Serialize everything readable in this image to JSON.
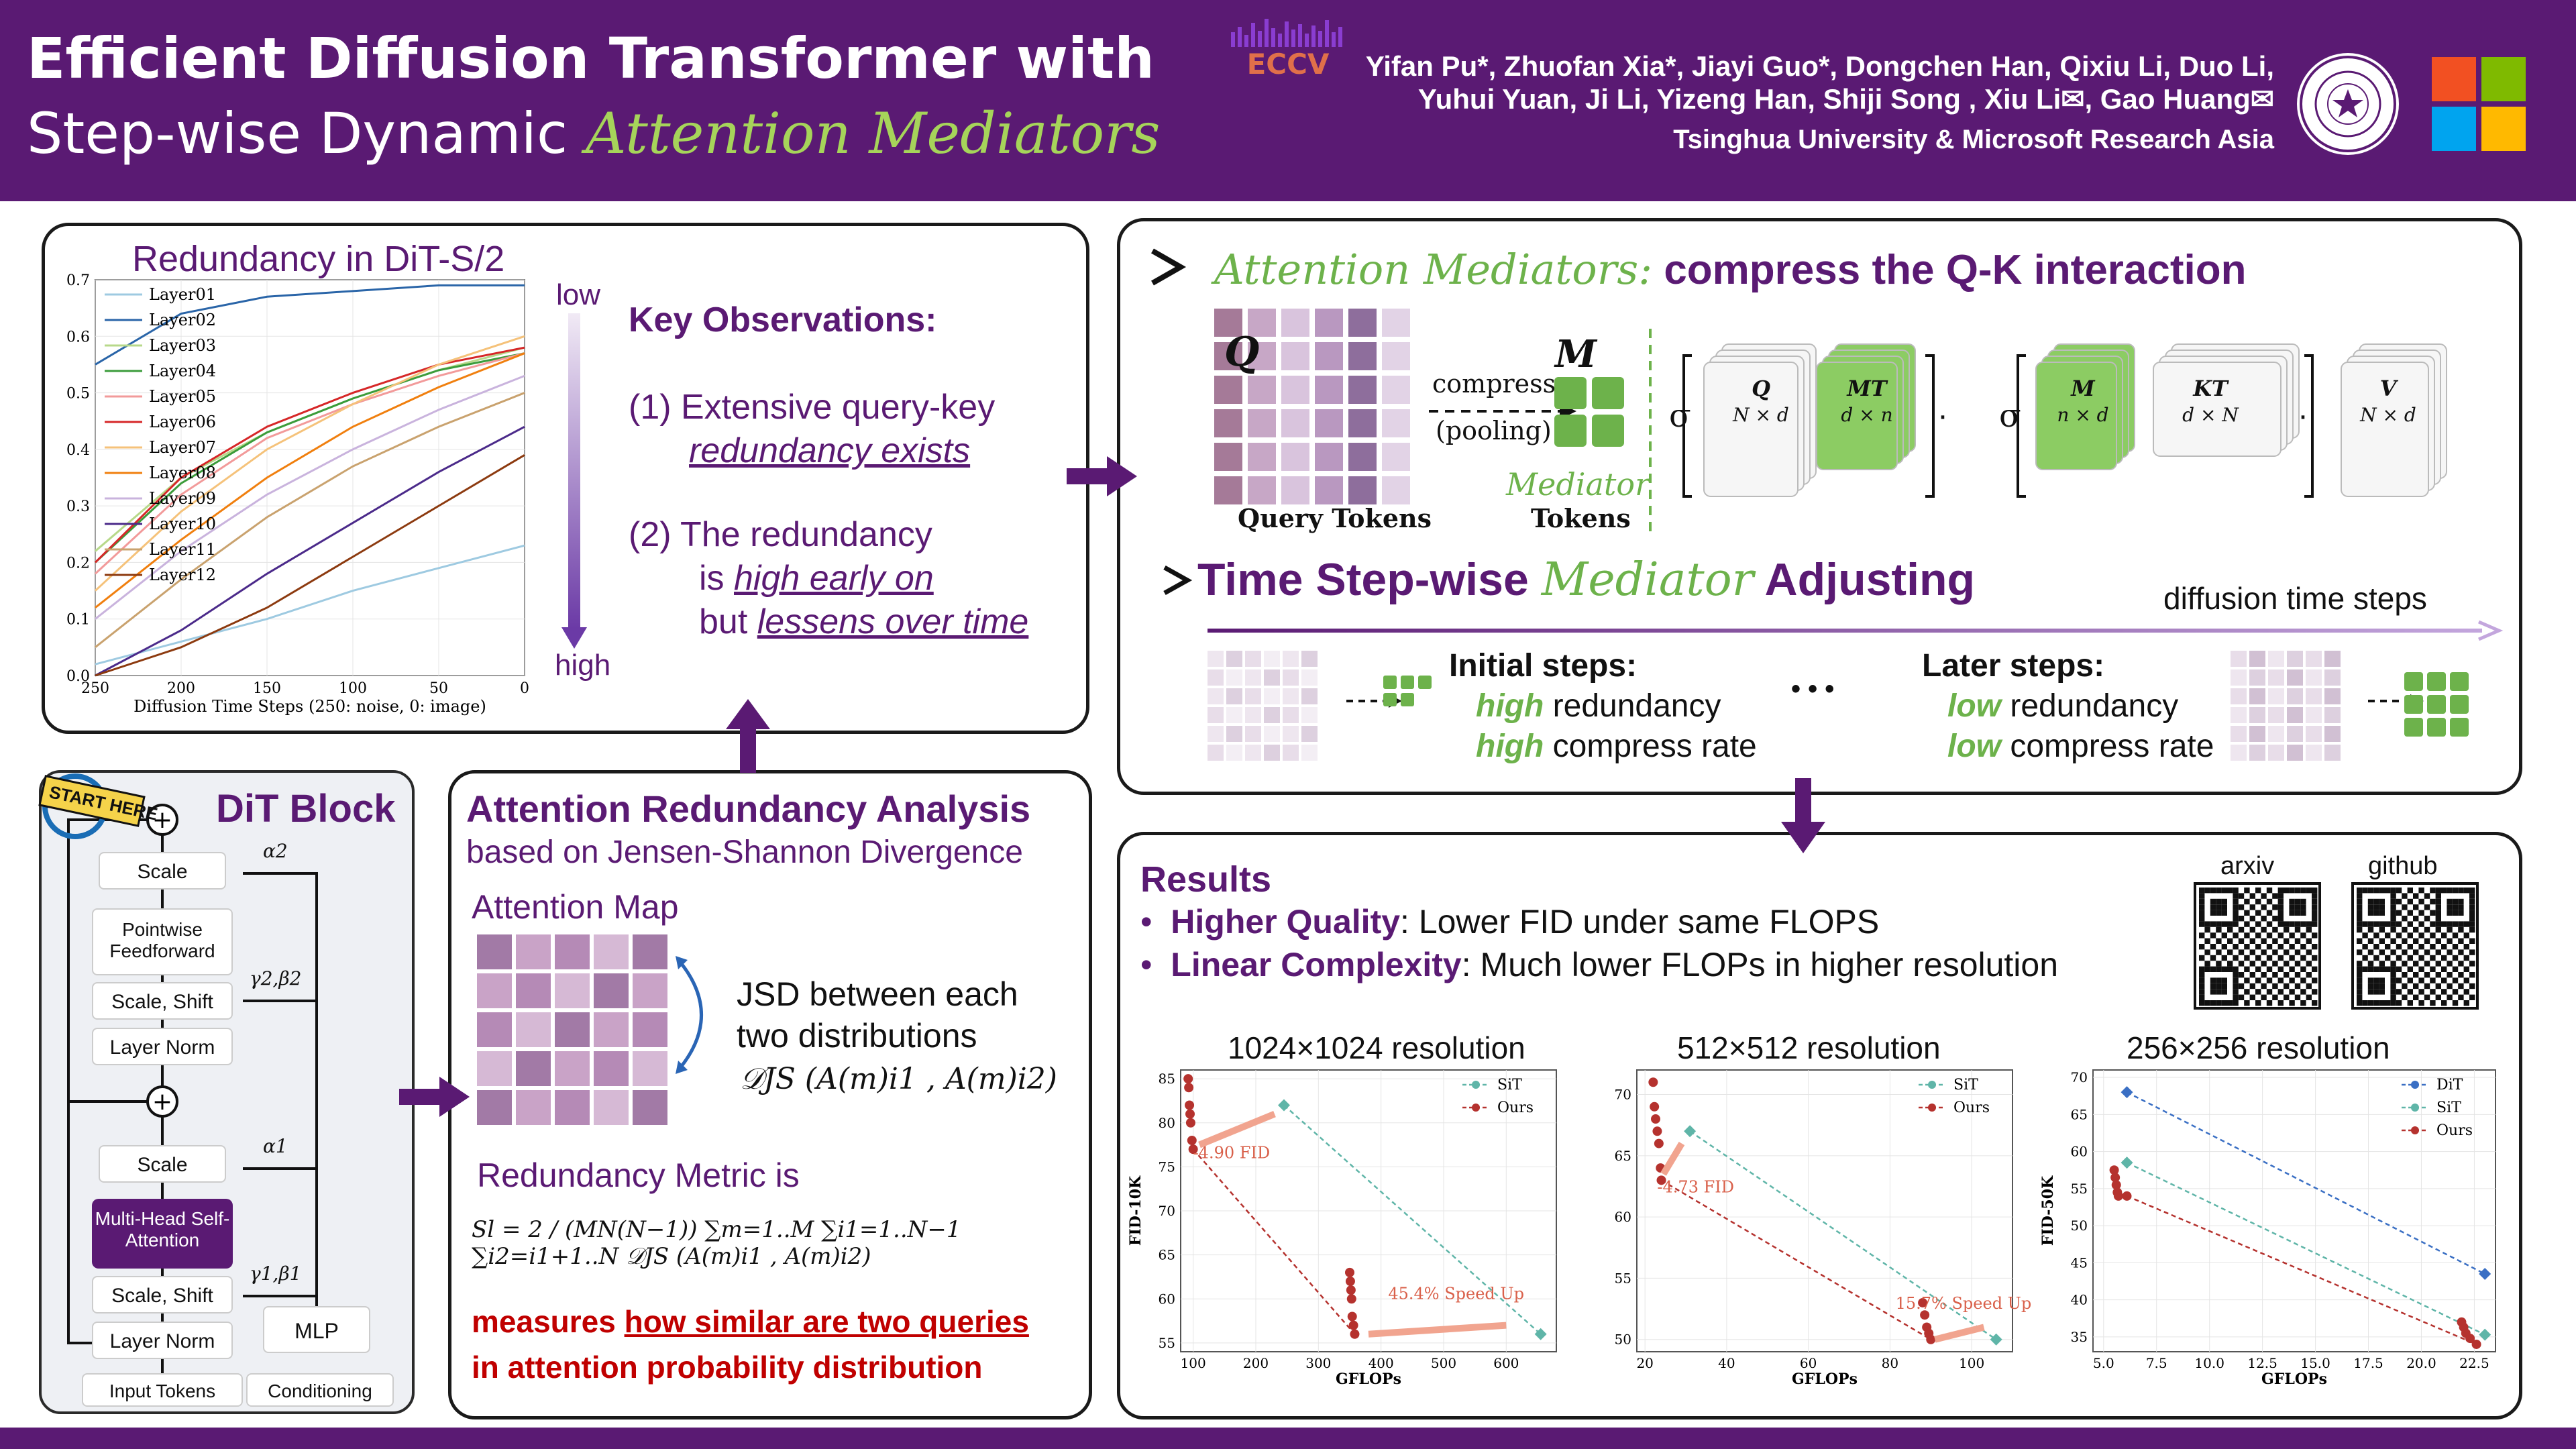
{
  "header": {
    "title_line1_bold": "Efficient Diffusion Transformer",
    "title_line1_rest": " with",
    "title_line2_plain": "Step-wise Dynamic ",
    "title_line2_accent": "Attention Mediators",
    "eccv_label": "ECCV",
    "authors_line1": "Yifan Pu*, Zhuofan Xia*, Jiayi Guo*, Dongchen Han, Qixiu Li, Duo Li,",
    "authors_line2": "Yuhui Yuan, Ji Li, Yizeng Han, Shiji Song , Xiu Li✉, Gao Huang✉",
    "affiliation": "Tsinghua University & Microsoft Research Asia"
  },
  "colors": {
    "brand_purple": "#5a1a73",
    "mediator_green": "#6db24b",
    "attention_pink": "#c9a3c7",
    "highlight_red": "#c00000"
  },
  "redundancy_panel": {
    "chart_title": "Redundancy in DiT-S/2",
    "low_label": "low",
    "high_label": "high",
    "observations_title": "Key Observations:",
    "obs1_a": "(1) Extensive query-key",
    "obs1_b": "redundancy exists",
    "obs2_a": "(2) The redundancy",
    "obs2_b_prefix": "is ",
    "obs2_b": "high early on",
    "obs2_c_prefix": "but ",
    "obs2_c": "lessens over time"
  },
  "chart_data": [
    {
      "type": "line",
      "title": "Redundancy in DiT-S/2",
      "xlabel": "Diffusion Time Steps (250: noise, 0: image)",
      "ylabel": "",
      "x_ticks": [
        "250",
        "200",
        "150",
        "100",
        "50",
        "0"
      ],
      "y_ticks": [
        "0.0",
        "0.1",
        "0.2",
        "0.3",
        "0.4",
        "0.5",
        "0.6",
        "0.7"
      ],
      "xlim": [
        250,
        0
      ],
      "ylim": [
        0,
        0.7
      ],
      "x": [
        250,
        200,
        150,
        100,
        50,
        0
      ],
      "series": [
        {
          "name": "Layer01",
          "values": [
            0.02,
            0.06,
            0.1,
            0.15,
            0.19,
            0.23
          ]
        },
        {
          "name": "Layer02",
          "values": [
            0.55,
            0.64,
            0.67,
            0.68,
            0.69,
            0.69
          ]
        },
        {
          "name": "Layer03",
          "values": [
            0.22,
            0.35,
            0.43,
            0.49,
            0.54,
            0.58
          ]
        },
        {
          "name": "Layer04",
          "values": [
            0.2,
            0.34,
            0.43,
            0.49,
            0.54,
            0.57
          ]
        },
        {
          "name": "Layer05",
          "values": [
            0.18,
            0.32,
            0.42,
            0.48,
            0.53,
            0.57
          ]
        },
        {
          "name": "Layer06",
          "values": [
            0.2,
            0.35,
            0.44,
            0.5,
            0.55,
            0.58
          ]
        },
        {
          "name": "Layer07",
          "values": [
            0.15,
            0.29,
            0.4,
            0.48,
            0.55,
            0.6
          ]
        },
        {
          "name": "Layer08",
          "values": [
            0.12,
            0.24,
            0.35,
            0.44,
            0.51,
            0.57
          ]
        },
        {
          "name": "Layer09",
          "values": [
            0.1,
            0.22,
            0.32,
            0.4,
            0.47,
            0.53
          ]
        },
        {
          "name": "Layer10",
          "values": [
            0.0,
            0.08,
            0.18,
            0.27,
            0.36,
            0.44
          ]
        },
        {
          "name": "Layer11",
          "values": [
            0.05,
            0.17,
            0.28,
            0.37,
            0.44,
            0.5
          ]
        },
        {
          "name": "Layer12",
          "values": [
            0.0,
            0.05,
            0.12,
            0.21,
            0.3,
            0.39
          ]
        }
      ],
      "series_colors": [
        "#9ecae1",
        "#2a65a8",
        "#b7d98a",
        "#3b9c3b",
        "#f29a9a",
        "#d62728",
        "#f5c27a",
        "#f07f0e",
        "#c9b3dd",
        "#4b2a8a",
        "#c9a26e",
        "#8c3a0f"
      ]
    },
    {
      "type": "scatter",
      "title": "1024×1024 resolution",
      "xlabel": "GFLOPs",
      "ylabel": "FID-10K",
      "x_ticks": [
        "100",
        "200",
        "300",
        "400",
        "500",
        "600"
      ],
      "y_ticks": [
        "55",
        "60",
        "65",
        "70",
        "75",
        "80",
        "85"
      ],
      "xlim": [
        80,
        680
      ],
      "ylim": [
        54,
        86
      ],
      "series": [
        {
          "name": "SiT",
          "points": [
            [
              245,
              82
            ],
            [
              655,
              56
            ]
          ]
        },
        {
          "name": "Ours",
          "points": [
            [
              92,
              85
            ],
            [
              93,
              84
            ],
            [
              94,
              82
            ],
            [
              95,
              81
            ],
            [
              96,
              80
            ],
            [
              98,
              78
            ],
            [
              100,
              77
            ],
            [
              350,
              63
            ],
            [
              351,
              62
            ],
            [
              352,
              61
            ],
            [
              353,
              60
            ],
            [
              354,
              58
            ],
            [
              356,
              57
            ],
            [
              358,
              56
            ]
          ]
        }
      ],
      "annotations": [
        "-4.90 FID",
        "45.4% Speed Up"
      ]
    },
    {
      "type": "scatter",
      "title": "512×512 resolution",
      "xlabel": "GFLOPs",
      "ylabel": "",
      "x_ticks": [
        "20",
        "40",
        "60",
        "80",
        "100"
      ],
      "y_ticks": [
        "50",
        "55",
        "60",
        "65",
        "70"
      ],
      "xlim": [
        18,
        110
      ],
      "ylim": [
        49,
        72
      ],
      "series": [
        {
          "name": "SiT",
          "points": [
            [
              31,
              67
            ],
            [
              106,
              50
            ]
          ]
        },
        {
          "name": "Ours",
          "points": [
            [
              22,
              71
            ],
            [
              22.3,
              69
            ],
            [
              22.6,
              68
            ],
            [
              23,
              67
            ],
            [
              23.4,
              66
            ],
            [
              23.8,
              64
            ],
            [
              24,
              63
            ],
            [
              88,
              53
            ],
            [
              88.5,
              52
            ],
            [
              89,
              51
            ],
            [
              89.5,
              50.5
            ],
            [
              90,
              50
            ]
          ]
        }
      ],
      "annotations": [
        "-4.73 FID",
        "15.7% Speed Up"
      ]
    },
    {
      "type": "scatter",
      "title": "256×256 resolution",
      "xlabel": "GFLOPs",
      "ylabel": "FID-50K",
      "x_ticks": [
        "5.0",
        "7.5",
        "10.0",
        "12.5",
        "15.0",
        "17.5",
        "20.0",
        "22.5"
      ],
      "y_ticks": [
        "35",
        "40",
        "45",
        "50",
        "55",
        "60",
        "65",
        "70"
      ],
      "xlim": [
        4.5,
        23.5
      ],
      "ylim": [
        33,
        71
      ],
      "series": [
        {
          "name": "DiT",
          "points": [
            [
              6.1,
              68
            ],
            [
              23.0,
              43.5
            ]
          ]
        },
        {
          "name": "SiT",
          "points": [
            [
              6.1,
              58.5
            ],
            [
              23.0,
              35.3
            ]
          ]
        },
        {
          "name": "Ours",
          "points": [
            [
              5.5,
              57.5
            ],
            [
              5.55,
              56.5
            ],
            [
              5.6,
              55.5
            ],
            [
              5.65,
              54.5
            ],
            [
              5.7,
              54
            ],
            [
              6.1,
              54
            ],
            [
              21.9,
              37
            ],
            [
              22.0,
              36.3
            ],
            [
              22.1,
              35.5
            ],
            [
              22.3,
              34.8
            ],
            [
              22.6,
              34
            ]
          ]
        }
      ]
    }
  ],
  "dit_block": {
    "title": "DiT Block",
    "start_here": "START HERE",
    "scale_top": "Scale",
    "feedforward": "Pointwise Feedforward",
    "scale_shift_top": "Scale, Shift",
    "layer_norm_top": "Layer Norm",
    "scale_mid": "Scale",
    "mhsa": "Multi-Head Self-Attention",
    "scale_shift_bottom": "Scale, Shift",
    "layer_norm_bottom": "Layer Norm",
    "mlp": "MLP",
    "input_tokens": "Input Tokens",
    "conditioning": "Conditioning",
    "alpha2": "α2",
    "gamma2beta2": "γ2,β2",
    "alpha1": "α1",
    "gamma1beta1": "γ1,β1"
  },
  "analysis_panel": {
    "title": "Attention Redundancy Analysis",
    "subtitle": "based on Jensen-Shannon Divergence",
    "attention_map_label": "Attention Map",
    "jsd_line1": "JSD between each",
    "jsd_line2": "two distributions",
    "jsd_formula": "𝒟JS (A(m)i1 , A(m)i2)",
    "metric_label": "Redundancy Metric is",
    "metric_formula": "Sl = 2 / (MN(N−1)) ∑m=1..M ∑i1=1..N−1 ∑i2=i1+1..N 𝒟JS (A(m)i1 , A(m)i2)",
    "measures_prefix": "measures ",
    "measures_underline": "how similar are two queries",
    "measures_line2": "in attention probability distribution"
  },
  "mediator_panel": {
    "heading_accent": "Attention Mediators:",
    "heading_rest": " compress the Q-K interaction",
    "q_label": "Q",
    "compress_label": "compress",
    "pooling_label": "(pooling)",
    "m_label": "M",
    "query_tokens": "Query Tokens",
    "mediator_label": "Mediator",
    "tokens_label": "Tokens",
    "sigma": "σ",
    "dot": "·",
    "eq_q": "Q",
    "eq_q_dim": "N × d",
    "eq_mt": "MT",
    "eq_mt_dim": "d × n",
    "eq_m": "M",
    "eq_m_dim": "n × d",
    "eq_kt": "KT",
    "eq_kt_dim": "d × N",
    "eq_v": "V",
    "eq_v_dim": "N × d",
    "stepwise_pre": "Time Step-wise ",
    "stepwise_accent": "Mediator",
    "stepwise_post": " Adjusting",
    "diffusion_steps": "diffusion time steps",
    "initial_title": "Initial steps:",
    "initial_high1": "high",
    "initial_rest1": " redundancy",
    "initial_high2": "high",
    "initial_rest2": " compress rate",
    "ellipsis": "• • •",
    "later_title": "Later steps:",
    "later_low1": "low",
    "later_rest1": " redundancy",
    "later_low2": "low",
    "later_rest2": " compress rate"
  },
  "results_panel": {
    "title": "Results",
    "bullet1_bold": "Higher Quality",
    "bullet1_rest": ": Lower FID under same FLOPS",
    "bullet2_bold": "Linear Complexity",
    "bullet2_rest": ": Much lower FLOPs in higher resolution",
    "arxiv_label": "arxiv",
    "github_label": "github"
  }
}
